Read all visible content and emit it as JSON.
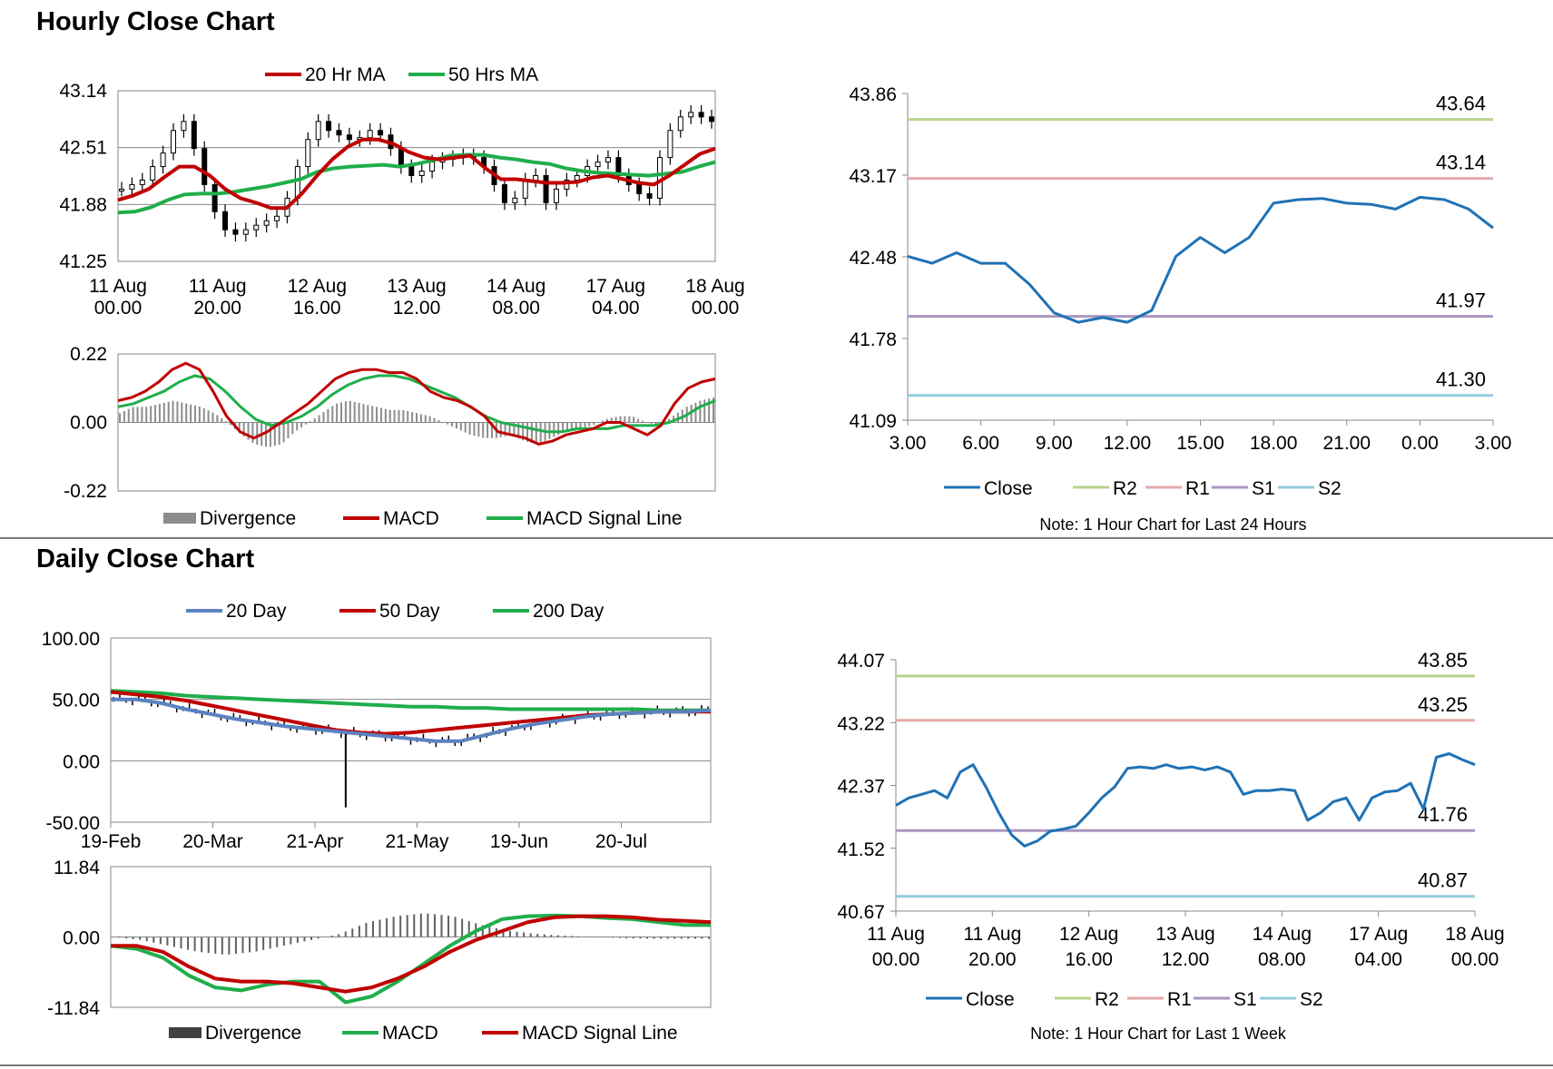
{
  "sections": {
    "hourly_title": "Hourly Close Chart",
    "daily_title": "Daily Close Chart"
  },
  "colors": {
    "ma20": "#c00000",
    "ma50": "#1fae4b",
    "ma_blue": "#5a82c0",
    "macd_red": "#c00000",
    "macd_green": "#1fae4b",
    "divergence": "#8c8c8c",
    "close": "#1f72b5",
    "r2": "#b8d38a",
    "r1": "#e4a9a9",
    "s1": "#a996c2",
    "s2": "#93cbdc"
  },
  "chart_data": [
    {
      "id": "hourly_price",
      "type": "candlestick+line",
      "title": "",
      "ylim": [
        41.25,
        43.14
      ],
      "y_ticks": [
        "43.14",
        "42.51",
        "41.88",
        "41.25"
      ],
      "x_ticks": [
        [
          "11 Aug",
          "00.00"
        ],
        [
          "11 Aug",
          "20.00"
        ],
        [
          "12 Aug",
          "16.00"
        ],
        [
          "13 Aug",
          "12.00"
        ],
        [
          "14 Aug",
          "08.00"
        ],
        [
          "17 Aug",
          "04.00"
        ],
        [
          "18 Aug",
          "00.00"
        ]
      ],
      "legend": [
        "20 Hr MA",
        "50 Hrs MA"
      ],
      "series": [
        {
          "name": "20 Hr MA",
          "values": [
            41.93,
            41.98,
            42.05,
            42.18,
            42.3,
            42.3,
            42.2,
            42.05,
            41.95,
            41.9,
            41.84,
            41.84,
            42.0,
            42.2,
            42.38,
            42.52,
            42.6,
            42.6,
            42.55,
            42.46,
            42.4,
            42.38,
            42.4,
            42.42,
            42.28,
            42.16,
            42.16,
            42.14,
            42.12,
            42.12,
            42.13,
            42.18,
            42.2,
            42.16,
            42.12,
            42.1,
            42.2,
            42.32,
            42.44,
            42.5
          ]
        },
        {
          "name": "50 Hrs MA",
          "values": [
            41.79,
            41.8,
            41.85,
            41.93,
            41.99,
            42.0,
            42.0,
            42.02,
            42.05,
            42.08,
            42.12,
            42.16,
            42.24,
            42.28,
            42.3,
            42.31,
            42.32,
            42.3,
            42.33,
            42.37,
            42.42,
            42.43,
            42.43,
            42.4,
            42.38,
            42.35,
            42.33,
            42.28,
            42.25,
            42.23,
            42.22,
            42.21,
            42.2,
            42.22,
            42.24,
            42.3,
            42.35
          ]
        }
      ],
      "candles": [
        42.05,
        42.1,
        42.15,
        42.3,
        42.45,
        42.7,
        42.8,
        42.5,
        42.1,
        41.8,
        41.6,
        41.55,
        41.6,
        41.65,
        41.7,
        41.75,
        41.95,
        42.3,
        42.6,
        42.8,
        42.7,
        42.65,
        42.6,
        42.62,
        42.7,
        42.65,
        42.5,
        42.3,
        42.2,
        42.25,
        42.35,
        42.38,
        42.4,
        42.42,
        42.4,
        42.3,
        42.1,
        41.9,
        41.95,
        42.15,
        42.2,
        41.9,
        42.05,
        42.15,
        42.2,
        42.3,
        42.35,
        42.4,
        42.2,
        42.1,
        42.0,
        41.95,
        42.4,
        42.7,
        42.85,
        42.9,
        42.85,
        42.8
      ]
    },
    {
      "id": "hourly_macd",
      "type": "line+bar",
      "ylim": [
        -0.22,
        0.22
      ],
      "y_ticks": [
        "0.22",
        "0.00",
        "-0.22"
      ],
      "legend": [
        "Divergence",
        "MACD",
        "MACD Signal Line"
      ],
      "series": [
        {
          "name": "MACD",
          "values": [
            0.07,
            0.08,
            0.1,
            0.13,
            0.17,
            0.19,
            0.17,
            0.1,
            0.02,
            -0.03,
            -0.05,
            -0.03,
            0.0,
            0.03,
            0.06,
            0.1,
            0.14,
            0.16,
            0.17,
            0.17,
            0.16,
            0.16,
            0.14,
            0.1,
            0.08,
            0.07,
            0.05,
            0.02,
            -0.03,
            -0.04,
            -0.05,
            -0.07,
            -0.06,
            -0.04,
            -0.03,
            -0.02,
            0.0,
            0.0,
            -0.02,
            -0.04,
            -0.01,
            0.06,
            0.11,
            0.13,
            0.14
          ]
        },
        {
          "name": "MACD Signal Line",
          "values": [
            0.05,
            0.06,
            0.08,
            0.1,
            0.13,
            0.15,
            0.14,
            0.1,
            0.05,
            0.01,
            -0.01,
            0.0,
            0.02,
            0.05,
            0.09,
            0.12,
            0.14,
            0.15,
            0.15,
            0.14,
            0.12,
            0.1,
            0.08,
            0.05,
            0.02,
            0.0,
            -0.01,
            -0.02,
            -0.03,
            -0.03,
            -0.02,
            -0.02,
            -0.02,
            -0.01,
            -0.01,
            -0.01,
            0.0,
            0.02,
            0.05,
            0.07
          ]
        },
        {
          "name": "Divergence",
          "values": [
            0.03,
            0.05,
            0.05,
            0.06,
            0.07,
            0.06,
            0.05,
            0.03,
            0.0,
            -0.04,
            -0.07,
            -0.08,
            -0.07,
            -0.03,
            0.0,
            0.03,
            0.06,
            0.07,
            0.06,
            0.05,
            0.04,
            0.04,
            0.03,
            0.02,
            0.0,
            -0.02,
            -0.04,
            -0.05,
            -0.05,
            -0.04,
            -0.06,
            -0.07,
            -0.05,
            -0.03,
            -0.02,
            -0.01,
            0.01,
            0.02,
            0.02,
            0.0,
            -0.01,
            0.02,
            0.05,
            0.07,
            0.08
          ]
        }
      ]
    },
    {
      "id": "hourly_24h",
      "type": "line",
      "ylim": [
        41.09,
        43.86
      ],
      "y_ticks": [
        "43.86",
        "43.17",
        "42.48",
        "41.78",
        "41.09"
      ],
      "x_ticks": [
        "3.00",
        "6.00",
        "9.00",
        "12.00",
        "15.00",
        "18.00",
        "21.00",
        "0.00",
        "3.00"
      ],
      "legend": [
        "Close",
        "R2",
        "R1",
        "S1",
        "S2"
      ],
      "levels": [
        {
          "name": "R2",
          "value": 43.64,
          "label": "43.64"
        },
        {
          "name": "R1",
          "value": 43.14,
          "label": "43.14"
        },
        {
          "name": "S1",
          "value": 41.97,
          "label": "41.97"
        },
        {
          "name": "S2",
          "value": 41.3,
          "label": "41.30"
        }
      ],
      "series": [
        {
          "name": "Close",
          "values": [
            42.48,
            42.42,
            42.51,
            42.42,
            42.42,
            42.24,
            42.0,
            41.92,
            41.96,
            41.92,
            42.02,
            42.48,
            42.64,
            42.51,
            42.64,
            42.93,
            42.96,
            42.97,
            42.93,
            42.92,
            42.88,
            42.98,
            42.96,
            42.88,
            42.72
          ]
        }
      ],
      "note": "Note: 1 Hour Chart for Last 24 Hours"
    },
    {
      "id": "daily_price",
      "type": "candlestick+line",
      "ylim": [
        -50,
        100
      ],
      "y_ticks": [
        "100.00",
        "50.00",
        "0.00",
        "-50.00"
      ],
      "x_ticks": [
        "19-Feb",
        "20-Mar",
        "21-Apr",
        "21-May",
        "19-Jun",
        "20-Jul"
      ],
      "legend": [
        "20 Day",
        "50 Day",
        "200 Day"
      ],
      "series": [
        {
          "name": "20 Day",
          "values": [
            50,
            50,
            47,
            42,
            38,
            34,
            31,
            28,
            26,
            24,
            22,
            20,
            18,
            16,
            16,
            21,
            26,
            30,
            33,
            36,
            38,
            39,
            40,
            40,
            41
          ]
        },
        {
          "name": "50 Day",
          "values": [
            56,
            54,
            52,
            49,
            45,
            41,
            37,
            33,
            29,
            25,
            23,
            22,
            23,
            25,
            27,
            29,
            31,
            33,
            35,
            37,
            38,
            39,
            40,
            40,
            40
          ]
        },
        {
          "name": "200 Day",
          "values": [
            57,
            56,
            55,
            53,
            52,
            51,
            50,
            49,
            48,
            47,
            46,
            45,
            44,
            44,
            43,
            43,
            42,
            42,
            42,
            42,
            42,
            42,
            41,
            41,
            41
          ]
        }
      ],
      "spike": {
        "low": -38,
        "high": 22
      }
    },
    {
      "id": "daily_macd",
      "type": "line+bar",
      "ylim": [
        -11.84,
        11.84
      ],
      "y_ticks": [
        "11.84",
        "0.00",
        "-11.84"
      ],
      "legend": [
        "Divergence",
        "MACD",
        "MACD Signal Line"
      ],
      "series": [
        {
          "name": "MACD",
          "values": [
            -1.5,
            -2.0,
            -3.5,
            -6.5,
            -8.5,
            -9.0,
            -8.0,
            -7.5,
            -7.5,
            -11.0,
            -10.0,
            -7.5,
            -4.5,
            -1.5,
            1.0,
            3.0,
            3.5,
            3.6,
            3.5,
            3.2,
            3.0,
            2.5,
            2.0,
            2.0
          ]
        },
        {
          "name": "MACD Signal Line",
          "values": [
            -1.5,
            -1.5,
            -2.5,
            -5.0,
            -7.0,
            -7.5,
            -7.5,
            -7.8,
            -8.5,
            -9.2,
            -8.5,
            -7.0,
            -5.0,
            -2.5,
            -0.5,
            1.0,
            2.5,
            3.3,
            3.5,
            3.5,
            3.3,
            2.9,
            2.7,
            2.5
          ]
        },
        {
          "name": "Divergence",
          "values": [
            0.0,
            -0.5,
            -1.5,
            -2.5,
            -3.0,
            -2.5,
            -1.5,
            -0.5,
            0.5,
            2.5,
            3.5,
            4.0,
            3.5,
            2.0,
            1.0,
            0.5,
            0.2,
            0.0,
            -0.2,
            -0.3,
            -0.3,
            -0.3
          ]
        }
      ]
    },
    {
      "id": "hourly_1week",
      "type": "line",
      "ylim": [
        40.67,
        44.07
      ],
      "y_ticks": [
        "44.07",
        "43.22",
        "42.37",
        "41.52",
        "40.67"
      ],
      "x_ticks": [
        [
          "11 Aug",
          "00.00"
        ],
        [
          "11 Aug",
          "20.00"
        ],
        [
          "12 Aug",
          "16.00"
        ],
        [
          "13 Aug",
          "12.00"
        ],
        [
          "14 Aug",
          "08.00"
        ],
        [
          "17 Aug",
          "04.00"
        ],
        [
          "18 Aug",
          "00.00"
        ]
      ],
      "legend": [
        "Close",
        "R2",
        "R1",
        "S1",
        "S2"
      ],
      "levels": [
        {
          "name": "R2",
          "value": 43.85,
          "label": "43.85"
        },
        {
          "name": "R1",
          "value": 43.25,
          "label": "43.25"
        },
        {
          "name": "S1",
          "value": 41.76,
          "label": "41.76"
        },
        {
          "name": "S2",
          "value": 40.87,
          "label": "40.87"
        }
      ],
      "series": [
        {
          "name": "Close",
          "values": [
            42.1,
            42.2,
            42.25,
            42.3,
            42.2,
            42.55,
            42.65,
            42.35,
            42.0,
            41.7,
            41.55,
            41.62,
            41.75,
            41.78,
            41.82,
            42.0,
            42.2,
            42.35,
            42.6,
            42.62,
            42.6,
            42.65,
            42.6,
            42.62,
            42.58,
            42.62,
            42.55,
            42.25,
            42.3,
            42.3,
            42.32,
            42.3,
            41.9,
            42.0,
            42.15,
            42.2,
            41.9,
            42.2,
            42.28,
            42.3,
            42.4,
            42.05,
            42.75,
            42.8,
            42.72,
            42.65
          ]
        }
      ],
      "note": "Note: 1 Hour Chart for Last 1 Week"
    }
  ]
}
